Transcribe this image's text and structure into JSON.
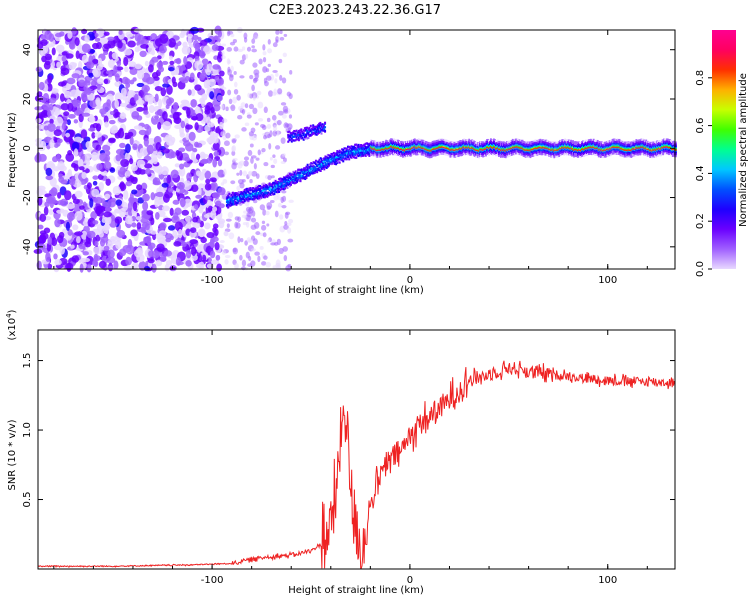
{
  "figure": {
    "title": "C2E3.2023.243.22.36.G17"
  },
  "chart_data": [
    {
      "type": "heatmap",
      "xlabel": "Height of straight line (km)",
      "ylabel": "Frequency (Hz)",
      "xlim": [
        -188,
        134
      ],
      "ylim": [
        -49,
        48
      ],
      "x_ticks": [
        -100,
        0,
        100
      ],
      "y_ticks": [
        -40,
        -20,
        0,
        20,
        40
      ],
      "x_tick_labels": [
        "-100",
        "0",
        "100"
      ],
      "y_tick_labels": [
        "-40",
        "-20",
        "0",
        "20",
        "40"
      ],
      "colorbar": {
        "label": "Normalized spectral amplitude",
        "range": [
          0,
          1
        ],
        "ticks": [
          0.0,
          0.2,
          0.4,
          0.6,
          0.8
        ],
        "tick_labels": [
          "0.0",
          "0.2",
          "0.4",
          "0.6",
          "0.8"
        ],
        "colors": [
          "#e8d8ff",
          "#a060ff",
          "#6a00ff",
          "#1e00ff",
          "#0050ff",
          "#00c8ff",
          "#00ff90",
          "#40ff00",
          "#c8ff00",
          "#ffb000",
          "#ff3000",
          "#ff0060",
          "#ff0090"
        ]
      },
      "features": {
        "noise_region_x": [
          -188,
          -95
        ],
        "sparse_region_x": [
          -95,
          -60
        ],
        "branch_lower": {
          "x": [
            -93,
            -80,
            -70,
            -60,
            -50,
            -40,
            -30,
            -20
          ],
          "y": [
            -21,
            -18,
            -16,
            -12,
            -8,
            -4,
            -1,
            0
          ]
        },
        "branch_upper": {
          "x": [
            -62,
            -55,
            -48,
            -43
          ],
          "y": [
            5,
            6,
            8,
            9
          ]
        },
        "carrier": {
          "x": [
            -20,
            134
          ],
          "y": [
            0,
            0
          ]
        }
      },
      "grid": false
    },
    {
      "type": "line",
      "xlabel": "Height of straight line (km)",
      "ylabel": "SNR (10 * v/v)",
      "y_multiplier_label": "(x10",
      "y_multiplier_exp": "4",
      "y_multiplier_close": ")",
      "xlim": [
        -188,
        134
      ],
      "ylim": [
        0,
        1.72
      ],
      "x_ticks": [
        -100,
        0,
        100
      ],
      "y_ticks": [
        0.5,
        1.0,
        1.5
      ],
      "x_tick_labels": [
        "-100",
        "0",
        "100"
      ],
      "y_tick_labels": [
        "0.5",
        "1.0",
        "1.5"
      ],
      "series": [
        {
          "color": "#ee2222",
          "x": [
            -188,
            -150,
            -110,
            -90,
            -80,
            -70,
            -60,
            -50,
            -45,
            -40,
            -37,
            -35,
            -33,
            -31,
            -29,
            -27,
            -25,
            -23,
            -20,
            -17,
            -13,
            -9,
            -5,
            -2,
            0,
            5,
            10,
            15,
            20,
            25,
            30,
            40,
            50,
            60,
            70,
            80,
            90,
            100,
            110,
            120,
            134
          ],
          "y": [
            0.02,
            0.02,
            0.03,
            0.04,
            0.07,
            0.09,
            0.1,
            0.13,
            0.18,
            0.3,
            0.55,
            0.95,
            1.2,
            0.8,
            0.45,
            0.3,
            0.12,
            0.2,
            0.45,
            0.6,
            0.72,
            0.8,
            0.85,
            0.9,
            0.95,
            1.05,
            1.1,
            1.15,
            1.22,
            1.3,
            1.36,
            1.4,
            1.45,
            1.42,
            1.4,
            1.39,
            1.37,
            1.36,
            1.35,
            1.35,
            1.34
          ]
        }
      ],
      "grid": false
    }
  ]
}
